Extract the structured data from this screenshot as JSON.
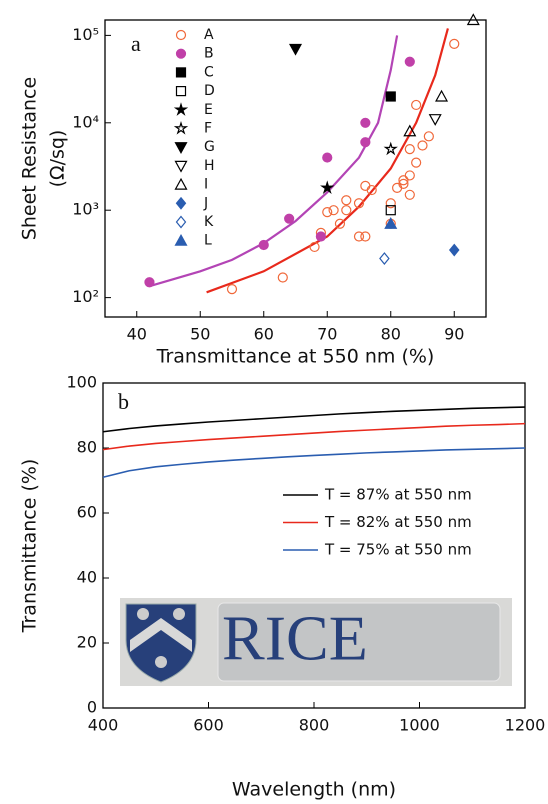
{
  "chart_data": [
    {
      "type": "scatter",
      "annotation": "a",
      "x_label": "Transmittance at 550 nm (%)",
      "y_label": [
        "Sheet Resistance",
        "(Ω/sq)"
      ],
      "xlim": [
        35,
        95
      ],
      "xticks": [
        40,
        50,
        60,
        70,
        80,
        90
      ],
      "ylim": [
        60,
        150000
      ],
      "ylog": true,
      "yticks": [
        {
          "value": 100,
          "label": "10²"
        },
        {
          "value": 1000,
          "label": "10³"
        },
        {
          "value": 10000,
          "label": "10⁴"
        },
        {
          "value": 100000,
          "label": "10⁵"
        }
      ],
      "series": [
        {
          "name": "A",
          "marker": "circle",
          "filled": false,
          "color": "#f0683a",
          "x": [
            55,
            63,
            68,
            69,
            70,
            71,
            72,
            73,
            73,
            75,
            75,
            76,
            76,
            77,
            80,
            80,
            81,
            82,
            82,
            83,
            83,
            83,
            84,
            84,
            85,
            86,
            90
          ],
          "values": [
            125,
            170,
            380,
            550,
            950,
            1000,
            700,
            1000,
            1300,
            500,
            1200,
            500,
            1900,
            1700,
            700,
            1200,
            1800,
            2000,
            2200,
            1500,
            2500,
            5000,
            3500,
            16000,
            5500,
            7000,
            80000
          ]
        },
        {
          "name": "B",
          "marker": "circle",
          "filled": true,
          "color": "#c040a8",
          "x": [
            42,
            60,
            64,
            69,
            70,
            76,
            76,
            83
          ],
          "values": [
            150,
            400,
            800,
            500,
            4000,
            6000,
            10000,
            50000
          ]
        },
        {
          "name": "C",
          "marker": "square",
          "filled": true,
          "color": "#000000",
          "x": [
            80
          ],
          "values": [
            20000
          ]
        },
        {
          "name": "D",
          "marker": "square",
          "filled": false,
          "color": "#000000",
          "x": [
            80
          ],
          "values": [
            1000
          ]
        },
        {
          "name": "E",
          "marker": "star",
          "filled": true,
          "color": "#000000",
          "x": [
            70
          ],
          "values": [
            1800
          ]
        },
        {
          "name": "F",
          "marker": "star",
          "filled": false,
          "color": "#000000",
          "x": [
            80
          ],
          "values": [
            5000
          ]
        },
        {
          "name": "G",
          "marker": "triangle-down",
          "filled": true,
          "color": "#000000",
          "x": [
            65
          ],
          "values": [
            70000
          ]
        },
        {
          "name": "H",
          "marker": "triangle-down",
          "filled": false,
          "color": "#000000",
          "x": [
            87
          ],
          "values": [
            11000
          ]
        },
        {
          "name": "I",
          "marker": "triangle-up",
          "filled": false,
          "color": "#000000",
          "x": [
            83,
            88,
            93
          ],
          "values": [
            8000,
            20000,
            150000
          ]
        },
        {
          "name": "J",
          "marker": "diamond",
          "filled": true,
          "color": "#2a5db0",
          "x": [
            90
          ],
          "values": [
            350
          ]
        },
        {
          "name": "K",
          "marker": "diamond",
          "filled": false,
          "color": "#2a5db0",
          "x": [
            79
          ],
          "values": [
            280
          ]
        },
        {
          "name": "L",
          "marker": "triangle-up",
          "filled": true,
          "color": "#2a5db0",
          "x": [
            80
          ],
          "values": [
            700
          ]
        }
      ],
      "fits": [
        {
          "color": "#b344b5",
          "x": [
            42,
            50,
            55,
            60,
            65,
            70,
            75,
            78,
            80,
            81
          ],
          "values": [
            135,
            200,
            270,
            420,
            750,
            1600,
            4000,
            10000,
            40000,
            100000
          ]
        },
        {
          "color": "#e8291c",
          "x": [
            51,
            60,
            70,
            75,
            80,
            84,
            87,
            89
          ],
          "values": [
            115,
            200,
            500,
            1100,
            3000,
            10000,
            35000,
            120000
          ]
        }
      ]
    },
    {
      "type": "line",
      "annotation": "b",
      "photo_text": "RICE",
      "x_label": "Wavelength (nm)",
      "y_label": "Transmittance (%)",
      "xlim": [
        400,
        1200
      ],
      "xticks": [
        400,
        600,
        800,
        1000,
        1200
      ],
      "ylim": [
        0,
        100
      ],
      "yticks": [
        0,
        20,
        40,
        60,
        80,
        100
      ],
      "x": [
        400,
        450,
        500,
        550,
        600,
        650,
        700,
        750,
        800,
        850,
        900,
        950,
        1000,
        1050,
        1100,
        1150,
        1200
      ],
      "series": [
        {
          "name": "T = 87% at 550 nm",
          "color": "#000000",
          "values": [
            85.0,
            86.0,
            86.8,
            87.4,
            88.0,
            88.5,
            89.0,
            89.5,
            90.0,
            90.5,
            90.9,
            91.3,
            91.6,
            91.9,
            92.2,
            92.4,
            92.6
          ]
        },
        {
          "name": "T = 82% at 550 nm",
          "color": "#e8291c",
          "values": [
            79.5,
            80.6,
            81.4,
            82.0,
            82.6,
            83.1,
            83.6,
            84.1,
            84.6,
            85.1,
            85.5,
            85.9,
            86.3,
            86.7,
            87.0,
            87.2,
            87.5
          ]
        },
        {
          "name": "T = 75% at 550 nm",
          "color": "#2a5db0",
          "values": [
            71.0,
            73.0,
            74.2,
            75.0,
            75.7,
            76.3,
            76.8,
            77.3,
            77.7,
            78.1,
            78.5,
            78.8,
            79.1,
            79.4,
            79.6,
            79.8,
            80.0
          ]
        }
      ]
    }
  ]
}
